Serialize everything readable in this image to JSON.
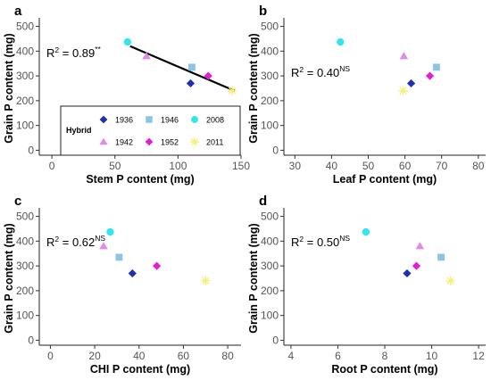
{
  "chart_data": [
    {
      "type": "scatter",
      "panel": "a",
      "xlabel": "Stem P content (mg)",
      "ylabel": "Grain P content (mg)",
      "xlim": [
        -10,
        150
      ],
      "ylim": [
        -20,
        520
      ],
      "xticks": [
        0,
        50,
        100,
        150
      ],
      "yticks": [
        0,
        100,
        200,
        300,
        400,
        500
      ],
      "r2_value": "0.89",
      "r2_sig": "**",
      "trendline": {
        "x": [
          62,
          145
        ],
        "y": [
          420,
          240
        ]
      },
      "points": [
        {
          "hybrid": "1936",
          "x": 110,
          "y": 270
        },
        {
          "hybrid": "1942",
          "x": 75,
          "y": 380
        },
        {
          "hybrid": "1946",
          "x": 111,
          "y": 335
        },
        {
          "hybrid": "1952",
          "x": 124,
          "y": 300
        },
        {
          "hybrid": "2008",
          "x": 60,
          "y": 437
        },
        {
          "hybrid": "2011",
          "x": 143,
          "y": 240
        }
      ]
    },
    {
      "type": "scatter",
      "panel": "b",
      "xlabel": "Leaf P content (mg)",
      "ylabel": "Grain P content (mg)",
      "xlim": [
        27,
        82
      ],
      "ylim": [
        -20,
        520
      ],
      "xticks": [
        30,
        40,
        50,
        60,
        70,
        80
      ],
      "yticks": [
        0,
        100,
        200,
        300,
        400,
        500
      ],
      "r2_value": "0.40",
      "r2_sig": "NS",
      "points": [
        {
          "hybrid": "1936",
          "x": 61.7,
          "y": 270
        },
        {
          "hybrid": "1942",
          "x": 59.7,
          "y": 380
        },
        {
          "hybrid": "1946",
          "x": 68.6,
          "y": 335
        },
        {
          "hybrid": "1952",
          "x": 66.8,
          "y": 300
        },
        {
          "hybrid": "2008",
          "x": 42.4,
          "y": 437
        },
        {
          "hybrid": "2011",
          "x": 59.5,
          "y": 240
        }
      ]
    },
    {
      "type": "scatter",
      "panel": "c",
      "xlabel": "CHI P content (mg)",
      "ylabel": "Grain P content (mg)",
      "xlim": [
        -5,
        86
      ],
      "ylim": [
        -20,
        520
      ],
      "xticks": [
        0,
        20,
        40,
        60,
        80
      ],
      "yticks": [
        0,
        100,
        200,
        300,
        400,
        500
      ],
      "r2_value": "0.62",
      "r2_sig": "NS",
      "points": [
        {
          "hybrid": "1936",
          "x": 37,
          "y": 270
        },
        {
          "hybrid": "1942",
          "x": 24,
          "y": 380
        },
        {
          "hybrid": "1946",
          "x": 31,
          "y": 335
        },
        {
          "hybrid": "1952",
          "x": 48,
          "y": 300
        },
        {
          "hybrid": "2008",
          "x": 27,
          "y": 437
        },
        {
          "hybrid": "2011",
          "x": 70,
          "y": 240
        }
      ]
    },
    {
      "type": "scatter",
      "panel": "d",
      "xlabel": "Root P content (mg)",
      "ylabel": "Grain P content (mg)",
      "xlim": [
        3.7,
        12.3
      ],
      "ylim": [
        -20,
        520
      ],
      "xticks": [
        4,
        6,
        8,
        10,
        12
      ],
      "yticks": [
        0,
        100,
        200,
        300,
        400,
        500
      ],
      "r2_value": "0.50",
      "r2_sig": "NS",
      "points": [
        {
          "hybrid": "1936",
          "x": 8.95,
          "y": 270
        },
        {
          "hybrid": "1942",
          "x": 9.5,
          "y": 380
        },
        {
          "hybrid": "1946",
          "x": 10.4,
          "y": 335
        },
        {
          "hybrid": "1952",
          "x": 9.35,
          "y": 300
        },
        {
          "hybrid": "2008",
          "x": 7.2,
          "y": 437
        },
        {
          "hybrid": "2011",
          "x": 10.8,
          "y": 240
        }
      ]
    }
  ],
  "legend": {
    "title": "Hybrid",
    "entries": [
      {
        "hybrid": "1936",
        "shape": "diamond-icon",
        "color": "#1f2fb8"
      },
      {
        "hybrid": "1946",
        "shape": "square-icon",
        "color": "#8cc4e6"
      },
      {
        "hybrid": "2008",
        "shape": "circle-icon",
        "color": "#33e5ef"
      },
      {
        "hybrid": "1942",
        "shape": "triangle-icon",
        "color": "#e08be8"
      },
      {
        "hybrid": "1952",
        "shape": "diamond-icon",
        "color": "#e41fd0"
      },
      {
        "hybrid": "2011",
        "shape": "asterisk-icon",
        "color": "#f5f07a"
      }
    ]
  }
}
